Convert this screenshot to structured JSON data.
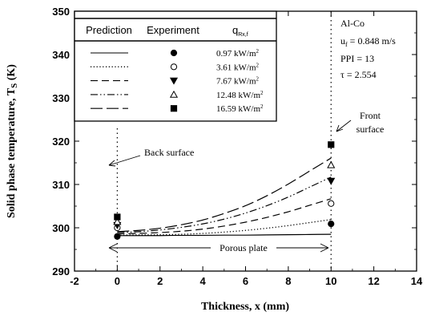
{
  "chart_data": {
    "type": "line",
    "xlabel": "Thickness, x (mm)",
    "ylabel_main": "Solid phase temperature, T",
    "ylabel_sub": "S",
    "ylabel_unit": " (K)",
    "xlim": [
      -2,
      14
    ],
    "ylim": [
      290,
      350
    ],
    "xticks": [
      -2,
      0,
      2,
      4,
      6,
      8,
      10,
      12,
      14
    ],
    "yticks": [
      290,
      300,
      310,
      320,
      330,
      340,
      350
    ],
    "legend": {
      "headers": {
        "prediction": "Prediction",
        "experiment": "Experiment",
        "q_main": "q",
        "q_sub": "Rx,f"
      },
      "unit_main": "kW/m",
      "unit_sup": "2"
    },
    "parameters": [
      {
        "text": "Al-Co"
      },
      {
        "main": "u",
        "sub": "f",
        "rest": " = 0.848 m/s"
      },
      {
        "text": "PPI = 13"
      },
      {
        "text": "τ = 2.554"
      }
    ],
    "annotations": {
      "back_surface": "Back surface",
      "front_surface_1": "Front",
      "front_surface_2": "surface",
      "porous_plate": "Porous plate"
    },
    "series": [
      {
        "q_value": "0.97",
        "line_style": "solid",
        "marker": "filled-circle",
        "prediction": [
          [
            0,
            298.2
          ],
          [
            1,
            298.2
          ],
          [
            2,
            298.2
          ],
          [
            3,
            298.25
          ],
          [
            4,
            298.25
          ],
          [
            5,
            298.3
          ],
          [
            6,
            298.3
          ],
          [
            7,
            298.35
          ],
          [
            8,
            298.4
          ],
          [
            9,
            298.45
          ],
          [
            10,
            298.5
          ]
        ],
        "experiment": [
          [
            0,
            298.0
          ],
          [
            10,
            300.9
          ]
        ]
      },
      {
        "q_value": "3.61",
        "line_style": "dotted",
        "marker": "open-circle",
        "prediction": [
          [
            0,
            298.3
          ],
          [
            1,
            298.35
          ],
          [
            2,
            298.4
          ],
          [
            3,
            298.5
          ],
          [
            4,
            298.7
          ],
          [
            5,
            299.0
          ],
          [
            6,
            299.4
          ],
          [
            7,
            299.9
          ],
          [
            8,
            300.5
          ],
          [
            9,
            301.2
          ],
          [
            10,
            301.9
          ]
        ],
        "experiment": [
          [
            0,
            300.0
          ],
          [
            10,
            305.6
          ]
        ]
      },
      {
        "q_value": "7.67",
        "line_style": "dashed",
        "marker": "filled-triangle-down",
        "prediction": [
          [
            0,
            298.6
          ],
          [
            1,
            298.7
          ],
          [
            2,
            298.9
          ],
          [
            3,
            299.2
          ],
          [
            4,
            299.7
          ],
          [
            5,
            300.4
          ],
          [
            6,
            301.3
          ],
          [
            7,
            302.4
          ],
          [
            8,
            303.7
          ],
          [
            9,
            305.2
          ],
          [
            10,
            306.7
          ]
        ],
        "experiment": [
          [
            0,
            300.6
          ],
          [
            10,
            310.8
          ]
        ]
      },
      {
        "q_value": "12.48",
        "line_style": "dash-dot-dot",
        "marker": "open-triangle-up",
        "prediction": [
          [
            0,
            298.9
          ],
          [
            1,
            299.1
          ],
          [
            2,
            299.5
          ],
          [
            3,
            300.1
          ],
          [
            4,
            300.9
          ],
          [
            5,
            302.0
          ],
          [
            6,
            303.4
          ],
          [
            7,
            305.1
          ],
          [
            8,
            307.1
          ],
          [
            9,
            309.4
          ],
          [
            10,
            311.7
          ]
        ],
        "experiment": [
          [
            0,
            301.4
          ],
          [
            10,
            314.5
          ]
        ]
      },
      {
        "q_value": "16.59",
        "line_style": "long-dash",
        "marker": "filled-square",
        "prediction": [
          [
            0,
            299.1
          ],
          [
            1,
            299.4
          ],
          [
            2,
            299.9
          ],
          [
            3,
            300.7
          ],
          [
            4,
            301.8
          ],
          [
            5,
            303.3
          ],
          [
            6,
            305.1
          ],
          [
            7,
            307.4
          ],
          [
            8,
            310.1
          ],
          [
            9,
            313.1
          ],
          [
            10,
            316.1
          ]
        ],
        "experiment": [
          [
            0,
            302.5
          ],
          [
            10,
            319.2
          ]
        ]
      }
    ]
  }
}
